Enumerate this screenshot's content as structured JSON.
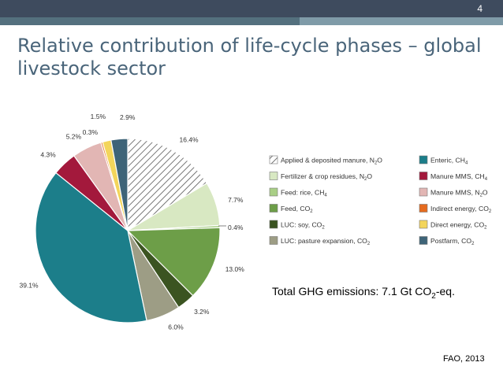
{
  "slide": {
    "number": "4",
    "title_line1": "Relative contribution of life-cycle phases – global",
    "title_line2": "livestock sector",
    "total_prefix": "Total GHG emissions: 7.1 Gt CO",
    "total_sub": "2",
    "total_suffix": "-eq.",
    "source": "FAO, 2013"
  },
  "colors": {
    "topbar": "#3e4b5e",
    "title": "#4a657a"
  },
  "chart_data": {
    "type": "pie",
    "title": "",
    "legend_placement": "right",
    "slices": [
      {
        "label": "Applied & deposited manure, N",
        "sub": "2",
        "tail": "O",
        "value": 16.4,
        "pct_label": "16.4%",
        "color": "#ffffff",
        "hatch": true
      },
      {
        "label": "Fertilizer & crop residues, N",
        "sub": "2",
        "tail": "O",
        "value": 7.7,
        "pct_label": "7.7%",
        "color": "#d8e8c2"
      },
      {
        "label": "Feed: rice, CH",
        "sub": "4",
        "tail": "",
        "value": 0.4,
        "pct_label": "0.4%",
        "color": "#a9cf86"
      },
      {
        "label": "Feed, CO",
        "sub": "2",
        "tail": "",
        "value": 13.0,
        "pct_label": "13.0%",
        "color": "#6d9e48"
      },
      {
        "label": "LUC: soy, CO",
        "sub": "2",
        "tail": "",
        "value": 3.2,
        "pct_label": "3.2%",
        "color": "#3b5421"
      },
      {
        "label": "LUC: pasture expansion, CO",
        "sub": "2",
        "tail": "",
        "value": 6.0,
        "pct_label": "6.0%",
        "color": "#9d9d85"
      },
      {
        "label": "Enteric, CH",
        "sub": "4",
        "tail": "",
        "value": 39.1,
        "pct_label": "39.1%",
        "color": "#1c7e8a"
      },
      {
        "label": "Manure MMS, CH",
        "sub": "4",
        "tail": "",
        "value": 4.3,
        "pct_label": "4.3%",
        "color": "#a3193c"
      },
      {
        "label": "Manure MMS, N",
        "sub": "2",
        "tail": "O",
        "value": 5.2,
        "pct_label": "5.2%",
        "color": "#e2b6b4"
      },
      {
        "label": "Indirect energy, CO",
        "sub": "2",
        "tail": "",
        "value": 0.3,
        "pct_label": "0.3%",
        "color": "#e56b1f"
      },
      {
        "label": "Direct energy, CO",
        "sub": "2",
        "tail": "",
        "value": 1.5,
        "pct_label": "1.5%",
        "color": "#f3d55b"
      },
      {
        "label": "Postfarm, CO",
        "sub": "2",
        "tail": "",
        "value": 2.9,
        "pct_label": "2.9%",
        "color": "#3e6478"
      }
    ]
  }
}
